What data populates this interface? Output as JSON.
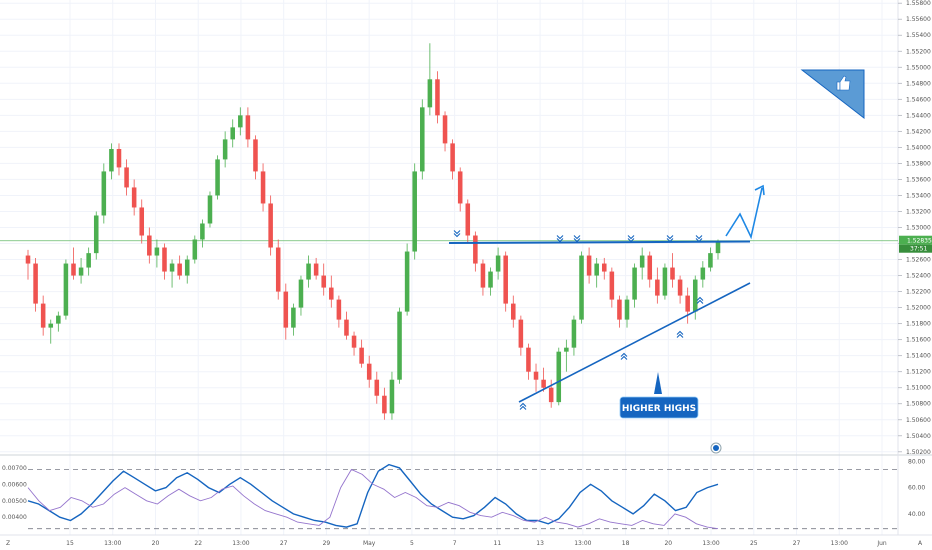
{
  "chart_data": [
    {
      "type": "candlestick",
      "panel": "price",
      "title": "",
      "ylim": [
        1.5016,
        1.5584
      ],
      "y_ticks": [
        "1.55800",
        "1.55600",
        "1.55400",
        "1.55200",
        "1.55000",
        "1.54800",
        "1.54600",
        "1.54400",
        "1.54200",
        "1.54000",
        "1.53800",
        "1.53600",
        "1.53400",
        "1.53200",
        "1.53000",
        "1.52800",
        "1.52600",
        "1.52400",
        "1.52200",
        "1.52000",
        "1.51800",
        "1.51600",
        "1.51400",
        "1.51200",
        "1.51000",
        "1.50800",
        "1.50600",
        "1.50400",
        "1.50200"
      ],
      "last_price_label": "1.52835",
      "countdown_label": "37:51",
      "current_price_line": 1.52835,
      "up_color": "#4caf50",
      "down_color": "#ef5350",
      "line_color": "#1565c0",
      "candles": [
        [
          1.5265,
          1.5272,
          1.5235,
          1.5255
        ],
        [
          1.5255,
          1.5262,
          1.5195,
          1.5205
        ],
        [
          1.5205,
          1.5215,
          1.5165,
          1.5175
        ],
        [
          1.5175,
          1.5185,
          1.5155,
          1.518
        ],
        [
          1.518,
          1.5195,
          1.517,
          1.519
        ],
        [
          1.519,
          1.526,
          1.5185,
          1.5255
        ],
        [
          1.5255,
          1.5275,
          1.5235,
          1.524
        ],
        [
          1.524,
          1.5262,
          1.523,
          1.525
        ],
        [
          1.525,
          1.5275,
          1.524,
          1.5268
        ],
        [
          1.5268,
          1.532,
          1.526,
          1.5315
        ],
        [
          1.5315,
          1.538,
          1.5305,
          1.537
        ],
        [
          1.537,
          1.5405,
          1.536,
          1.5398
        ],
        [
          1.5398,
          1.5405,
          1.5365,
          1.5375
        ],
        [
          1.5375,
          1.5385,
          1.534,
          1.535
        ],
        [
          1.535,
          1.536,
          1.5315,
          1.5325
        ],
        [
          1.5325,
          1.5335,
          1.528,
          1.529
        ],
        [
          1.529,
          1.53,
          1.5255,
          1.5265
        ],
        [
          1.5265,
          1.5285,
          1.525,
          1.5275
        ],
        [
          1.5275,
          1.528,
          1.5235,
          1.5245
        ],
        [
          1.5245,
          1.526,
          1.5225,
          1.5255
        ],
        [
          1.5255,
          1.5265,
          1.5235,
          1.524
        ],
        [
          1.524,
          1.5265,
          1.523,
          1.526
        ],
        [
          1.526,
          1.529,
          1.5255,
          1.5285
        ],
        [
          1.5285,
          1.531,
          1.5275,
          1.5305
        ],
        [
          1.5305,
          1.5345,
          1.53,
          1.534
        ],
        [
          1.534,
          1.539,
          1.5335,
          1.5385
        ],
        [
          1.5385,
          1.542,
          1.5375,
          1.541
        ],
        [
          1.541,
          1.5435,
          1.54,
          1.5425
        ],
        [
          1.5425,
          1.545,
          1.5415,
          1.544
        ],
        [
          1.544,
          1.545,
          1.54,
          1.541
        ],
        [
          1.541,
          1.5415,
          1.536,
          1.537
        ],
        [
          1.537,
          1.538,
          1.532,
          1.533
        ],
        [
          1.533,
          1.534,
          1.5265,
          1.5275
        ],
        [
          1.5275,
          1.5285,
          1.521,
          1.522
        ],
        [
          1.522,
          1.523,
          1.516,
          1.5175
        ],
        [
          1.5175,
          1.5205,
          1.5165,
          1.52
        ],
        [
          1.52,
          1.524,
          1.519,
          1.5235
        ],
        [
          1.5235,
          1.5265,
          1.5225,
          1.5255
        ],
        [
          1.5255,
          1.5262,
          1.5235,
          1.524
        ],
        [
          1.524,
          1.5255,
          1.5215,
          1.5225
        ],
        [
          1.5225,
          1.524,
          1.52,
          1.521
        ],
        [
          1.521,
          1.5215,
          1.5175,
          1.5185
        ],
        [
          1.5185,
          1.5195,
          1.516,
          1.5165
        ],
        [
          1.5165,
          1.517,
          1.514,
          1.515
        ],
        [
          1.515,
          1.516,
          1.5125,
          1.513
        ],
        [
          1.513,
          1.514,
          1.51,
          1.511
        ],
        [
          1.511,
          1.512,
          1.508,
          1.509
        ],
        [
          1.509,
          1.51,
          1.506,
          1.5068
        ],
        [
          1.5068,
          1.512,
          1.506,
          1.511
        ],
        [
          1.511,
          1.52,
          1.5105,
          1.5195
        ],
        [
          1.5195,
          1.528,
          1.519,
          1.527
        ],
        [
          1.527,
          1.538,
          1.526,
          1.537
        ],
        [
          1.537,
          1.546,
          1.536,
          1.545
        ],
        [
          1.545,
          1.553,
          1.544,
          1.5485
        ],
        [
          1.5485,
          1.5495,
          1.543,
          1.544
        ],
        [
          1.544,
          1.5445,
          1.5395,
          1.5405
        ],
        [
          1.5405,
          1.541,
          1.536,
          1.537
        ],
        [
          1.537,
          1.5375,
          1.532,
          1.533
        ],
        [
          1.533,
          1.5335,
          1.528,
          1.529
        ],
        [
          1.529,
          1.5295,
          1.5245,
          1.5255
        ],
        [
          1.5255,
          1.526,
          1.5215,
          1.5225
        ],
        [
          1.5225,
          1.525,
          1.5215,
          1.5245
        ],
        [
          1.5245,
          1.5275,
          1.5235,
          1.5265
        ],
        [
          1.5265,
          1.527,
          1.5195,
          1.5205
        ],
        [
          1.5205,
          1.5215,
          1.5175,
          1.5185
        ],
        [
          1.5185,
          1.519,
          1.514,
          1.515
        ],
        [
          1.515,
          1.5155,
          1.511,
          1.512
        ],
        [
          1.512,
          1.513,
          1.5095,
          1.511
        ],
        [
          1.511,
          1.5125,
          1.5095,
          1.51
        ],
        [
          1.51,
          1.511,
          1.5075,
          1.5082
        ],
        [
          1.5082,
          1.515,
          1.5078,
          1.5145
        ],
        [
          1.5145,
          1.516,
          1.512,
          1.515
        ],
        [
          1.515,
          1.519,
          1.514,
          1.5185
        ],
        [
          1.5185,
          1.527,
          1.518,
          1.5265
        ],
        [
          1.5265,
          1.5275,
          1.523,
          1.524
        ],
        [
          1.524,
          1.5262,
          1.5225,
          1.5255
        ],
        [
          1.5255,
          1.5262,
          1.5235,
          1.5245
        ],
        [
          1.5245,
          1.525,
          1.52,
          1.521
        ],
        [
          1.521,
          1.5215,
          1.5175,
          1.5185
        ],
        [
          1.5185,
          1.5215,
          1.5175,
          1.521
        ],
        [
          1.521,
          1.5255,
          1.52,
          1.525
        ],
        [
          1.525,
          1.5275,
          1.5235,
          1.5265
        ],
        [
          1.5265,
          1.527,
          1.5225,
          1.5235
        ],
        [
          1.5235,
          1.525,
          1.5205,
          1.5215
        ],
        [
          1.5215,
          1.5255,
          1.521,
          1.525
        ],
        [
          1.525,
          1.5268,
          1.5225,
          1.5235
        ],
        [
          1.5235,
          1.524,
          1.5205,
          1.5215
        ],
        [
          1.5215,
          1.5225,
          1.518,
          1.5195
        ],
        [
          1.5195,
          1.524,
          1.5185,
          1.5235
        ],
        [
          1.5235,
          1.5258,
          1.5225,
          1.525
        ],
        [
          1.525,
          1.5275,
          1.5245,
          1.5268
        ],
        [
          1.5268,
          1.5285,
          1.526,
          1.5283
        ]
      ]
    },
    {
      "type": "line",
      "panel": "indicator",
      "ylim": [
        0.0031,
        0.0076
      ],
      "left_ticks": [
        "0.00700",
        "0.00600",
        "0.00500",
        "0.00400"
      ],
      "right_ticks": [
        "80.00",
        "60.00",
        "40.00"
      ],
      "series": [
        {
          "color": "#1565c0",
          "values": [
            0.005,
            0.0048,
            0.0044,
            0.004,
            0.0038,
            0.0042,
            0.0048,
            0.0055,
            0.0062,
            0.0068,
            0.0064,
            0.006,
            0.0056,
            0.0058,
            0.0064,
            0.0067,
            0.0063,
            0.0058,
            0.0055,
            0.006,
            0.0064,
            0.006,
            0.0055,
            0.005,
            0.0046,
            0.0042,
            0.004,
            0.0038,
            0.0037,
            0.0035,
            0.0034,
            0.0036,
            0.0055,
            0.0068,
            0.0072,
            0.007,
            0.0062,
            0.0054,
            0.0048,
            0.0044,
            0.004,
            0.0039,
            0.0041,
            0.0046,
            0.0052,
            0.0048,
            0.0042,
            0.0038,
            0.0038,
            0.0036,
            0.0039,
            0.0046,
            0.0055,
            0.006,
            0.0056,
            0.005,
            0.0046,
            0.0042,
            0.0047,
            0.0054,
            0.005,
            0.0044,
            0.0046,
            0.0055,
            0.0058,
            0.006
          ]
        },
        {
          "color": "#9575cd",
          "values": [
            0.0058,
            0.005,
            0.0044,
            0.0046,
            0.0052,
            0.005,
            0.0046,
            0.0048,
            0.0054,
            0.0058,
            0.0054,
            0.005,
            0.0048,
            0.0053,
            0.0057,
            0.0053,
            0.005,
            0.0052,
            0.0057,
            0.0059,
            0.0053,
            0.0048,
            0.0044,
            0.0042,
            0.004,
            0.0037,
            0.0036,
            0.0035,
            0.004,
            0.0058,
            0.0069,
            0.0066,
            0.006,
            0.0057,
            0.0052,
            0.0055,
            0.0052,
            0.0047,
            0.0046,
            0.0049,
            0.0047,
            0.0043,
            0.0041,
            0.004,
            0.0043,
            0.0041,
            0.0038,
            0.0037,
            0.004,
            0.0037,
            0.0036,
            0.0034,
            0.0036,
            0.0039,
            0.0037,
            0.0036,
            0.0035,
            0.0038,
            0.0036,
            0.0035,
            0.0042,
            0.004,
            0.0036,
            0.0034,
            0.0033
          ]
        }
      ],
      "dashed_levels": [
        0.0069,
        0.0033
      ]
    }
  ],
  "x_axis": {
    "labels": [
      "15",
      "13:00",
      "20",
      "22",
      "13:00",
      "27",
      "29",
      "May",
      "5",
      "7",
      "11",
      "13",
      "13:00",
      "18",
      "20",
      "13:00",
      "25",
      "27",
      "13:00",
      "Jun"
    ]
  },
  "annotations": {
    "higher_highs_label": "HIGHER HIGHS",
    "corner_label": "Z",
    "corner_label_right": "A"
  },
  "icons": {
    "thumbs_up": "thumbs-up-icon",
    "marker": "circle-marker-icon"
  }
}
